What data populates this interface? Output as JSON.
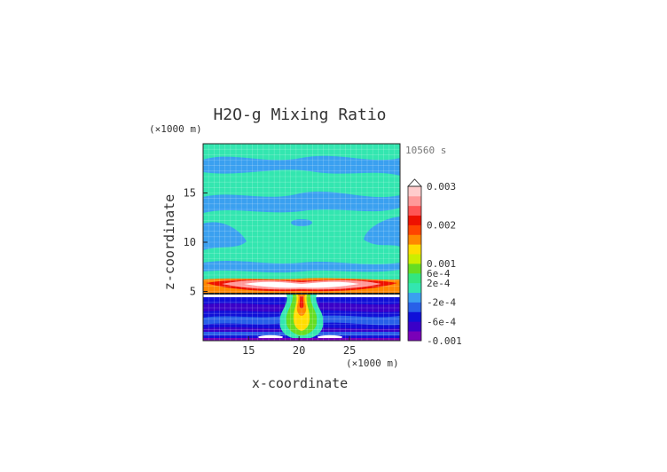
{
  "chart_data": {
    "type": "heatmap",
    "title": "H2O-g Mixing Ratio",
    "time_label": "10560 s",
    "xlabel": "x-coordinate",
    "ylabel": "z-coordinate",
    "x_unit": "(×1000 m)",
    "y_unit": "(×1000 m)",
    "xlim": [
      10.5,
      30
    ],
    "ylim": [
      0,
      20
    ],
    "x_ticks": [
      15,
      20,
      25
    ],
    "y_ticks": [
      5,
      10,
      15
    ],
    "grid": true,
    "colorbar": {
      "placement": "right",
      "colors": [
        "#7a00b8",
        "#3a00c8",
        "#1010d8",
        "#2860e8",
        "#3aa0f0",
        "#33e6b0",
        "#33e680",
        "#66dd22",
        "#ccee00",
        "#ffdd00",
        "#ff8800",
        "#ff4400",
        "#ee1100",
        "#ff5555",
        "#ff9999",
        "#ffcccc"
      ],
      "tick_labels": [
        {
          "label": "0.003",
          "level": 16
        },
        {
          "label": "0.002",
          "level": 12
        },
        {
          "label": "0.001",
          "level": 8
        },
        {
          "label": "6e-4",
          "level": 7
        },
        {
          "label": "2e-4",
          "level": 6
        },
        {
          "label": "-2e-4",
          "level": 4
        },
        {
          "label": "-6e-4",
          "level": 2
        },
        {
          "label": "-0.001",
          "level": 0
        }
      ]
    }
  }
}
